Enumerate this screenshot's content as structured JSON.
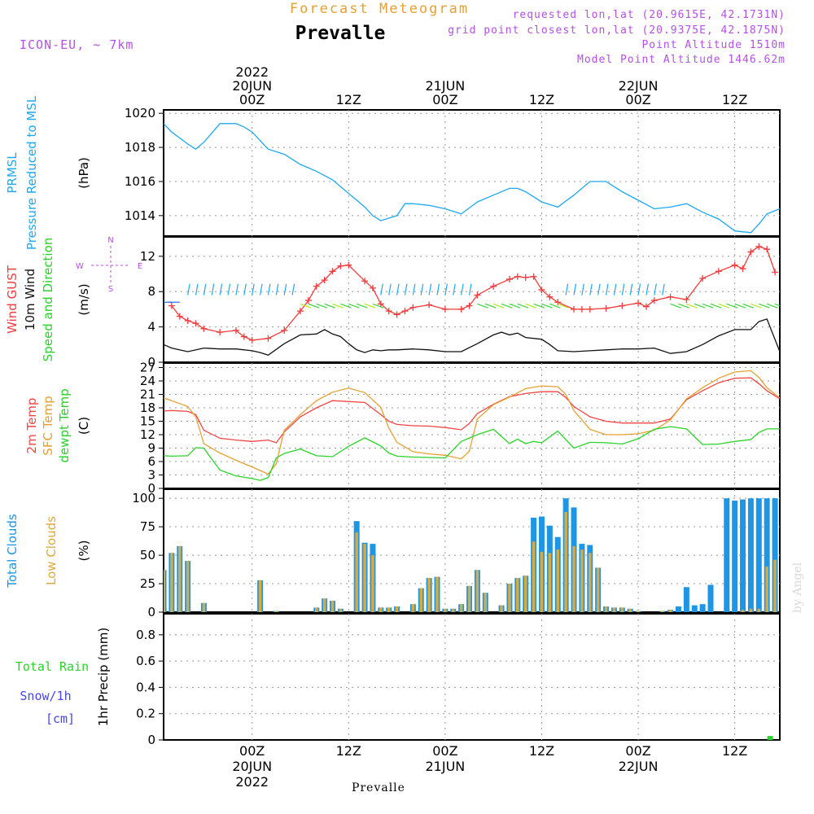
{
  "header": {
    "subtitle": "Forecast Meteogram",
    "title": "Prevalle",
    "model": "ICON-EU, ~ 7km",
    "requested": "requested lon,lat (20.9615E, 42.1731N)",
    "grid": "grid point closest lon,lat (20.9375E, 42.1875N)",
    "alt": "Point Altitude 1510m",
    "model_alt": "Model Point Altitude 1446.62m",
    "watermark": "by Angel",
    "footer": "Prevalle"
  },
  "colors": {
    "pressure": "#1ea8f0",
    "gust": "#f03c3c",
    "wind": "#111111",
    "temp2m": "#f04646",
    "sfc": "#e6a032",
    "dew": "#2ad22a",
    "total_clouds": "#1e96e6",
    "low_clouds": "#dcaa3c",
    "rain": "#2ad22a",
    "snow": "#4646f0",
    "axis_text": "#000000",
    "purple": "#b450e6"
  },
  "time_axis": {
    "top_labels": [
      {
        "t": 5,
        "lines": [
          "2022",
          "20JUN",
          "00Z"
        ]
      },
      {
        "t": 11,
        "lines": [
          "12Z"
        ]
      },
      {
        "t": 17,
        "lines": [
          "21JUN",
          "00Z"
        ]
      },
      {
        "t": 23,
        "lines": [
          "12Z"
        ]
      },
      {
        "t": 29,
        "lines": [
          "22JUN",
          "00Z"
        ]
      },
      {
        "t": 35,
        "lines": [
          "12Z"
        ]
      }
    ],
    "bottom_labels": [
      {
        "t": 5,
        "lines": [
          "00Z",
          "20JUN",
          "2022"
        ]
      },
      {
        "t": 11,
        "lines": [
          "12Z"
        ]
      },
      {
        "t": 17,
        "lines": [
          "00Z",
          "21JUN"
        ]
      },
      {
        "t": 23,
        "lines": [
          "12Z"
        ]
      },
      {
        "t": 29,
        "lines": [
          "00Z",
          "22JUN"
        ]
      },
      {
        "t": 35,
        "lines": [
          "12Z"
        ]
      }
    ]
  },
  "chart_data": [
    {
      "type": "line",
      "id": "pressure",
      "ylabel": [
        "PRMSL",
        "Pressure Reduced to MSL"
      ],
      "unit": "(hPa)",
      "ylim": [
        1012.8,
        1020.2
      ],
      "yticks": [
        1014,
        1016,
        1018,
        1020
      ],
      "x_range": [
        -0.5,
        37.8
      ],
      "series": [
        {
          "name": "PRMSL",
          "color": "pressure",
          "x": [
            -0.5,
            0,
            1,
            1.5,
            2,
            3,
            4,
            4.5,
            5,
            6,
            7,
            8,
            9,
            10,
            11,
            12,
            12.5,
            13,
            14,
            14.5,
            15,
            16,
            17,
            18,
            19,
            20,
            21,
            21.5,
            22,
            23,
            24,
            25,
            26,
            27,
            28,
            29,
            30,
            31,
            32,
            33,
            34,
            35,
            36,
            36.5,
            37,
            37.8
          ],
          "y": [
            1019.4,
            1018.9,
            1018.2,
            1017.9,
            1018.3,
            1019.4,
            1019.4,
            1019.2,
            1018.9,
            1017.9,
            1017.6,
            1017.0,
            1016.6,
            1016.1,
            1015.3,
            1014.5,
            1014.0,
            1013.7,
            1014.0,
            1014.7,
            1014.7,
            1014.6,
            1014.4,
            1014.1,
            1014.8,
            1015.2,
            1015.6,
            1015.6,
            1015.4,
            1014.8,
            1014.5,
            1015.2,
            1016.0,
            1016.0,
            1015.4,
            1014.9,
            1014.4,
            1014.5,
            1014.7,
            1014.2,
            1013.8,
            1013.1,
            1013.0,
            1013.5,
            1014.1,
            1014.4
          ]
        }
      ]
    },
    {
      "type": "line",
      "id": "wind",
      "ylabel": [
        "Wind GUST",
        "10m Wind",
        "Speed and Direction"
      ],
      "unit": "(m/s)",
      "compass": {
        "n": "N",
        "s": "S",
        "e": "E",
        "w": "W"
      },
      "ylim": [
        0,
        14.2
      ],
      "yticks": [
        0,
        4,
        8,
        12
      ],
      "x_range": [
        -0.5,
        37.8
      ],
      "series": [
        {
          "name": "Wind GUST",
          "color": "gust",
          "marker": "+",
          "x": [
            0,
            0.5,
            1,
            1.5,
            2,
            3,
            4,
            4.5,
            5,
            6,
            7,
            8,
            8.5,
            9,
            9.5,
            10,
            10.5,
            11,
            12,
            12.5,
            13,
            13.5,
            14,
            14.5,
            15,
            16,
            17,
            18,
            18.5,
            19,
            20,
            21,
            21.5,
            22,
            22.5,
            23,
            23.5,
            24,
            25,
            25.5,
            26,
            27,
            28,
            29,
            29.5,
            30,
            31,
            32,
            33,
            34,
            35,
            35.5,
            36,
            36.5,
            37,
            37.5
          ],
          "y": [
            6.4,
            5.2,
            4.7,
            4.4,
            3.8,
            3.4,
            3.6,
            2.9,
            2.5,
            2.7,
            3.6,
            5.8,
            7.0,
            8.6,
            9.3,
            10.3,
            10.9,
            11.0,
            9.2,
            8.4,
            6.6,
            5.8,
            5.4,
            5.8,
            6.2,
            6.5,
            6.0,
            6.0,
            6.4,
            7.6,
            8.6,
            9.4,
            9.7,
            9.6,
            9.7,
            8.2,
            7.4,
            6.8,
            6.0,
            6.0,
            6.0,
            6.1,
            6.4,
            6.7,
            6.3,
            7.0,
            7.4,
            7.1,
            9.5,
            10.3,
            11.0,
            10.6,
            12.5,
            13.1,
            12.8,
            10.2
          ]
        },
        {
          "name": "10m Wind",
          "color": "wind",
          "x": [
            -0.5,
            0,
            1,
            2,
            3,
            4,
            5,
            5.5,
            6,
            7,
            8,
            9,
            9.5,
            10,
            10.5,
            11,
            11.5,
            12,
            12.5,
            13,
            13.5,
            14,
            15,
            16,
            17,
            18,
            19,
            20,
            20.5,
            21,
            21.5,
            22,
            23,
            23.5,
            24,
            25,
            26,
            27,
            28,
            29,
            30,
            31,
            32,
            33,
            34,
            35,
            36,
            36.5,
            37,
            37.8
          ],
          "y": [
            2.0,
            1.6,
            1.2,
            1.6,
            1.5,
            1.5,
            1.3,
            1.1,
            0.8,
            2.1,
            3.1,
            3.2,
            3.7,
            3.2,
            2.9,
            2.1,
            1.4,
            1.1,
            1.4,
            1.3,
            1.4,
            1.4,
            1.5,
            1.4,
            1.2,
            1.2,
            2.1,
            3.1,
            3.4,
            3.1,
            3.3,
            2.8,
            2.6,
            2.0,
            1.3,
            1.2,
            1.3,
            1.4,
            1.5,
            1.5,
            1.6,
            1.0,
            1.2,
            2.0,
            3.0,
            3.7,
            3.7,
            4.6,
            4.9,
            1.2
          ]
        }
      ]
    },
    {
      "type": "line",
      "id": "temperature",
      "ylabel": [
        "2m Temp",
        "SFC Temp",
        "dewpt Temp"
      ],
      "unit": "(C)",
      "ylim": [
        0,
        28
      ],
      "yticks": [
        0,
        3,
        6,
        9,
        12,
        15,
        18,
        21,
        24,
        27
      ],
      "x_range": [
        -0.5,
        37.8
      ],
      "series": [
        {
          "name": "2m Temp",
          "color": "temp2m",
          "x": [
            -0.5,
            0,
            1,
            1.5,
            2,
            3,
            4,
            5,
            6,
            6.5,
            7,
            8,
            9,
            10,
            11,
            12,
            13,
            13.5,
            14,
            15,
            16,
            17,
            18,
            18.5,
            19,
            20,
            21,
            22,
            23,
            24,
            24.5,
            25,
            26,
            27,
            28,
            29,
            30,
            31,
            32,
            33,
            34,
            35,
            36,
            36.5,
            37,
            37.8
          ],
          "y": [
            17.3,
            17.4,
            17.2,
            16.5,
            13.0,
            11.2,
            10.8,
            10.5,
            10.8,
            10.2,
            12.6,
            16.0,
            18.0,
            19.6,
            19.4,
            19.2,
            16.5,
            15.0,
            14.3,
            14.0,
            13.9,
            13.6,
            13.1,
            14.5,
            16.7,
            18.8,
            20.5,
            21.2,
            21.6,
            21.6,
            20.3,
            18.3,
            16.0,
            15.0,
            14.6,
            14.6,
            14.6,
            15.5,
            19.8,
            21.8,
            23.6,
            24.6,
            24.7,
            23.4,
            21.8,
            20.0
          ]
        },
        {
          "name": "SFC Temp",
          "color": "sfc",
          "x": [
            -0.5,
            0,
            1,
            1.5,
            2,
            3,
            4,
            5,
            6,
            6.5,
            7,
            8,
            9,
            10,
            11,
            12,
            13,
            13.5,
            14,
            15,
            16,
            17,
            18,
            18.5,
            19,
            20,
            21,
            22,
            23,
            24,
            24.5,
            25,
            26,
            27,
            28,
            29,
            30,
            31,
            32,
            33,
            34,
            35,
            36,
            36.5,
            37,
            37.8
          ],
          "y": [
            20.2,
            19.6,
            18.3,
            16.0,
            10.0,
            7.9,
            6.3,
            4.8,
            3.2,
            5.5,
            13.0,
            16.5,
            19.6,
            21.5,
            22.4,
            21.4,
            18.1,
            13.5,
            10.3,
            8.2,
            7.7,
            7.4,
            6.6,
            8.3,
            15.5,
            18.7,
            20.4,
            22.3,
            22.9,
            22.7,
            21.0,
            17.4,
            13.2,
            12.0,
            12.0,
            12.2,
            13.0,
            15.3,
            20.0,
            22.5,
            24.6,
            26.0,
            26.3,
            24.8,
            22.5,
            20.2
          ]
        },
        {
          "name": "dewpt Temp",
          "color": "dew",
          "x": [
            -0.5,
            0,
            1,
            1.5,
            2,
            2.5,
            3,
            4,
            5,
            5.5,
            6,
            6.5,
            7,
            8,
            9,
            10,
            11,
            12,
            13,
            13.5,
            14,
            15,
            16,
            17,
            18,
            19,
            20,
            21,
            21.5,
            22,
            22.5,
            23,
            24,
            25,
            26,
            27,
            28,
            29,
            30,
            31,
            32,
            33,
            34,
            35,
            36,
            36.5,
            37,
            37.8
          ],
          "y": [
            7.3,
            7.2,
            7.3,
            9.1,
            9.0,
            6.5,
            4.1,
            2.8,
            2.2,
            1.8,
            2.4,
            6.8,
            7.8,
            8.8,
            7.3,
            7.1,
            9.4,
            11.3,
            9.5,
            7.9,
            7.2,
            7.0,
            6.9,
            6.8,
            10.5,
            12.0,
            13.2,
            10.0,
            11.0,
            10.0,
            10.5,
            10.2,
            12.8,
            9.0,
            10.3,
            10.2,
            9.9,
            11.1,
            13.2,
            13.8,
            13.3,
            9.8,
            9.9,
            10.5,
            10.9,
            12.5,
            13.3,
            13.3
          ]
        }
      ]
    },
    {
      "type": "bar",
      "id": "clouds",
      "ylabel": [
        "Total Clouds",
        "Low Clouds"
      ],
      "unit": "(%)",
      "ylim": [
        0,
        108
      ],
      "yticks": [
        0,
        25,
        50,
        75,
        100
      ],
      "x_range": [
        -0.5,
        37.8
      ],
      "series": [
        {
          "name": "Total Clouds",
          "color": "total_clouds",
          "x": [
            -0.5,
            0,
            0.5,
            1,
            2,
            3,
            4,
            4.5,
            5,
            5.5,
            6,
            6.5,
            8,
            8.5,
            9,
            9.5,
            10,
            10.5,
            11,
            11.5,
            12,
            12.5,
            13,
            13.5,
            14,
            14.5,
            15,
            15.5,
            16,
            16.5,
            17,
            17.5,
            18,
            18.5,
            19,
            19.5,
            20,
            20.5,
            21,
            21.5,
            22,
            22.5,
            23,
            23.5,
            24,
            24.5,
            25,
            25.5,
            26,
            26.5,
            27,
            27.5,
            28,
            28.5,
            29,
            29.5,
            30,
            30.5,
            31,
            31.5,
            32,
            32.5,
            33,
            33.5,
            34,
            34.5,
            35,
            35.5,
            36,
            36.5,
            37,
            37.5
          ],
          "values": [
            37,
            52,
            58,
            45,
            8,
            0,
            0,
            0,
            0,
            28,
            0,
            1,
            0,
            0,
            4,
            12,
            10,
            3,
            0,
            80,
            61,
            60,
            4,
            4,
            5,
            0,
            7,
            21,
            30,
            31,
            3,
            3,
            7,
            23,
            37,
            17,
            0,
            6,
            25,
            30,
            32,
            83,
            84,
            76,
            66,
            100,
            92,
            60,
            59,
            39,
            5,
            4,
            4,
            3,
            1,
            0,
            0,
            1,
            2,
            5,
            22,
            6,
            7,
            24,
            0,
            100,
            98,
            99,
            100,
            100,
            100,
            100
          ]
        },
        {
          "name": "Low Clouds",
          "color": "low_clouds",
          "x": [
            -0.5,
            0,
            0.5,
            1,
            2,
            3,
            4,
            4.5,
            5,
            5.5,
            6,
            6.5,
            8,
            8.5,
            9,
            9.5,
            10,
            10.5,
            11,
            11.5,
            12,
            12.5,
            13,
            13.5,
            14,
            14.5,
            15,
            15.5,
            16,
            16.5,
            17,
            17.5,
            18,
            18.5,
            19,
            19.5,
            20,
            20.5,
            21,
            21.5,
            22,
            22.5,
            23,
            23.5,
            24,
            24.5,
            25,
            25.5,
            26,
            26.5,
            27,
            27.5,
            28,
            28.5,
            29,
            29.5,
            30,
            30.5,
            31,
            31.5,
            32,
            32.5,
            33,
            33.5,
            34,
            34.5,
            35,
            35.5,
            36,
            36.5,
            37,
            37.5
          ],
          "values": [
            37,
            52,
            58,
            45,
            8,
            0,
            0,
            0,
            0,
            28,
            0,
            1,
            0,
            0,
            4,
            12,
            10,
            3,
            0,
            70,
            60,
            50,
            4,
            4,
            5,
            0,
            7,
            21,
            30,
            31,
            3,
            3,
            7,
            23,
            37,
            17,
            0,
            6,
            25,
            30,
            32,
            62,
            53,
            52,
            55,
            88,
            58,
            55,
            52,
            39,
            5,
            4,
            4,
            3,
            1,
            0,
            0,
            1,
            2,
            0,
            0,
            0,
            0,
            0,
            0,
            0,
            0,
            2,
            3,
            3,
            40,
            46
          ]
        }
      ]
    },
    {
      "type": "bar",
      "id": "precip",
      "ylabel_left": [
        "Total  Rain",
        "Snow/1h",
        "[cm]"
      ],
      "ylabel": [
        "1hr Precip (mm)"
      ],
      "ylim": [
        0,
        0.96
      ],
      "yticks": [
        0,
        0.2,
        0.4,
        0.6,
        0.8
      ],
      "ytick_labels": [
        "0",
        "0.2",
        "0.4",
        "0.6",
        "0.8"
      ],
      "x_range": [
        -0.5,
        37.8
      ],
      "series": [
        {
          "name": "Total Rain",
          "color": "rain",
          "x": [
            37.2
          ],
          "values": [
            0.03
          ]
        }
      ]
    }
  ]
}
